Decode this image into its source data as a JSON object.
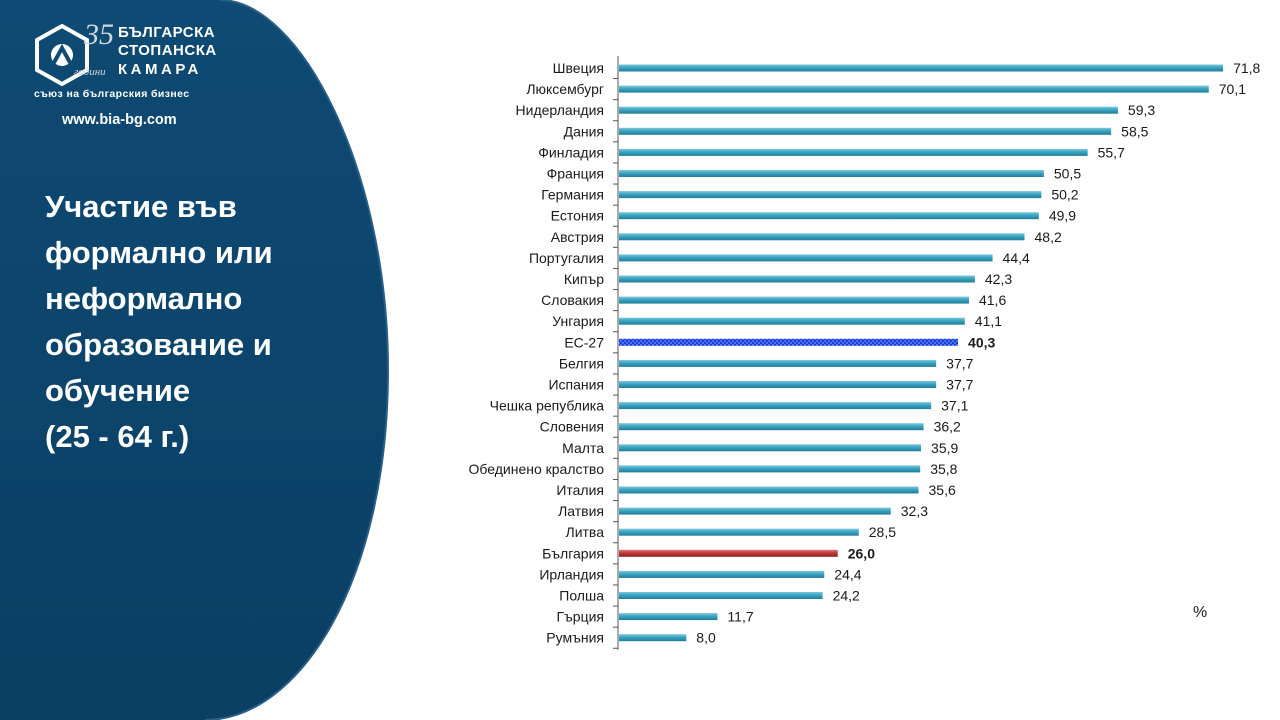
{
  "brand": {
    "line1": "БЪЛГАРСКА",
    "line2": "СТОПАНСКА",
    "line3": "КАМАРА",
    "tagline": "съюз на българския бизнес",
    "anniversary": "35",
    "anniversary_word": "години",
    "website": "www.bia-bg.com"
  },
  "slide": {
    "title_lines": [
      "Участие във",
      "формално или",
      "неформално",
      "образование и",
      "обучение",
      "(25 - 64 г.)"
    ],
    "panel_color": "#0f4a72"
  },
  "chart_data": {
    "type": "bar",
    "orientation": "horizontal",
    "title": "Участие във формално или неформално образование и обучение (25 - 64 г.)",
    "unit": "%",
    "categories": [
      "Швеция",
      "Люксембург",
      "Нидерландия",
      "Дания",
      "Финладия",
      "Франция",
      "Германия",
      "Естония",
      "Австрия",
      "Португалия",
      "Кипър",
      "Словакия",
      "Унгария",
      "ЕС-27",
      "Белгия",
      "Испания",
      "Чешка република",
      "Словения",
      "Малта",
      "Обединено кралство",
      "Италия",
      "Латвия",
      "Литва",
      "България",
      "Ирландия",
      "Полша",
      "Гърция",
      "Румъния"
    ],
    "values": [
      71.8,
      70.1,
      59.3,
      58.5,
      55.7,
      50.5,
      50.2,
      49.9,
      48.2,
      44.4,
      42.3,
      41.6,
      41.1,
      40.3,
      37.7,
      37.7,
      37.1,
      36.2,
      35.9,
      35.8,
      35.6,
      32.3,
      28.5,
      26.0,
      24.4,
      24.2,
      11.7,
      8.0
    ],
    "labels": [
      "71,8",
      "70,1",
      "59,3",
      "58,5",
      "55,7",
      "50,5",
      "50,2",
      "49,9",
      "48,2",
      "44,4",
      "42,3",
      "41,6",
      "41,1",
      "40,3",
      "37,7",
      "37,7",
      "37,1",
      "36,2",
      "35,9",
      "35,8",
      "35,6",
      "32,3",
      "28,5",
      "26,0",
      "24,4",
      "24,2",
      "11,7",
      "8,0"
    ],
    "xlim": [
      0,
      75
    ],
    "colors": {
      "default": "#3aa3c0",
      "highlight_eu": "#1a3fd8",
      "highlight_bg": "#c0393b",
      "eu_label": "#1f6fb5",
      "bg_label": "#a82222"
    },
    "highlight": {
      "ЕС-27": "eu",
      "България": "bg"
    },
    "grid": false
  }
}
